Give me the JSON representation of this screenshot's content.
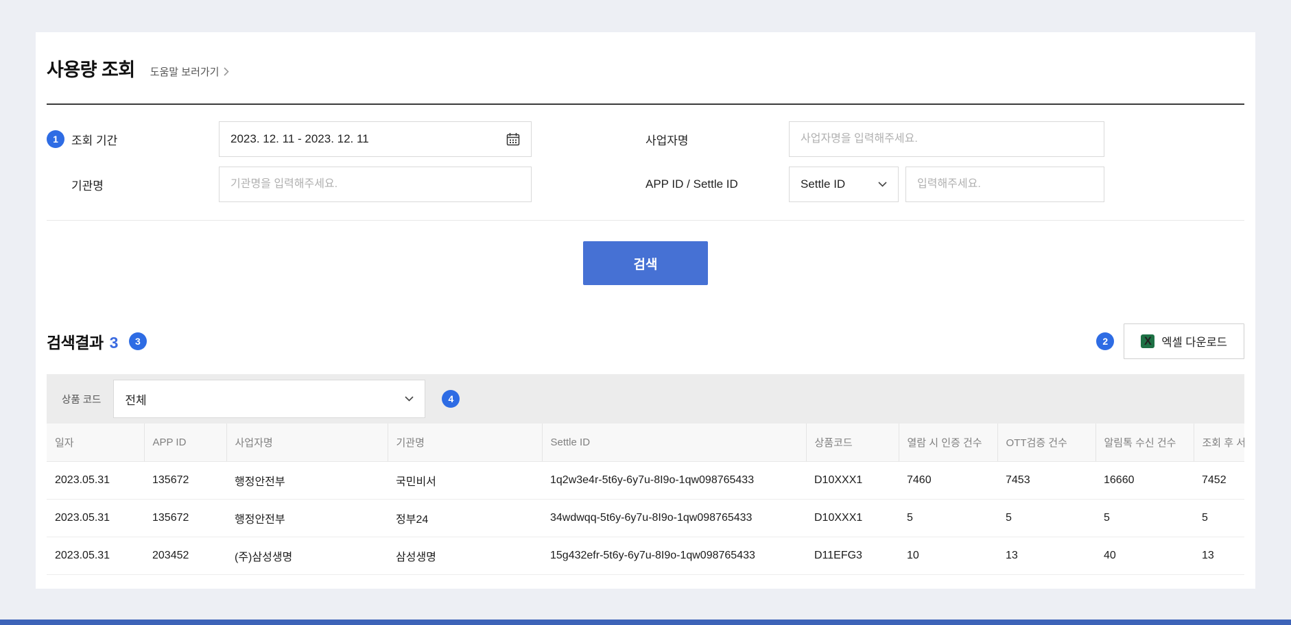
{
  "header": {
    "title": "사용량 조회",
    "help_link": "도움말 보러가기"
  },
  "form": {
    "period": {
      "badge": "1",
      "label": "조회 기간",
      "value": "2023. 12. 11 - 2023. 12. 11"
    },
    "business": {
      "label": "사업자명",
      "placeholder": "사업자명을 입력해주세요."
    },
    "org": {
      "label": "기관명",
      "placeholder": "기관명을 입력해주세요."
    },
    "appid": {
      "label": "APP ID / Settle ID",
      "selected": "Settle ID",
      "placeholder": "입력해주세요."
    },
    "search_button": "검색"
  },
  "results": {
    "title": "검색결과",
    "count": "3",
    "count_badge": "3",
    "excel_badge": "2",
    "excel_button": "엑셀 다운로드",
    "excel_icon_letter": "X",
    "filter": {
      "label": "상품 코드",
      "selected": "전체",
      "badge": "4"
    }
  },
  "table": {
    "columns": [
      "일자",
      "APP ID",
      "사업자명",
      "기관명",
      "Settle ID",
      "상품코드",
      "열람 시 인증 건수",
      "OTT검증 건수",
      "알림톡 수신 건수",
      "조회 후 서"
    ],
    "rows": [
      [
        "2023.05.31",
        "135672",
        "행정안전부",
        "국민비서",
        "1q2w3e4r-5t6y-6y7u-8I9o-1qw098765433",
        "D10XXX1",
        "7460",
        "7453",
        "16660",
        "7452"
      ],
      [
        "2023.05.31",
        "135672",
        "행정안전부",
        "정부24",
        "34wdwqq-5t6y-6y7u-8I9o-1qw098765433",
        "D10XXX1",
        "5",
        "5",
        "5",
        "5"
      ],
      [
        "2023.05.31",
        "203452",
        "(주)삼성생명",
        "삼성생명",
        "15g432efr-5t6y-6y7u-8I9o-1qw098765433",
        "D11EFG3",
        "10",
        "13",
        "40",
        "13"
      ]
    ]
  },
  "colors": {
    "accent_blue": "#4671d4",
    "badge_blue": "#2e6ce4",
    "excel_green": "#1e7145",
    "bottom_bar": "#3d63b8"
  }
}
